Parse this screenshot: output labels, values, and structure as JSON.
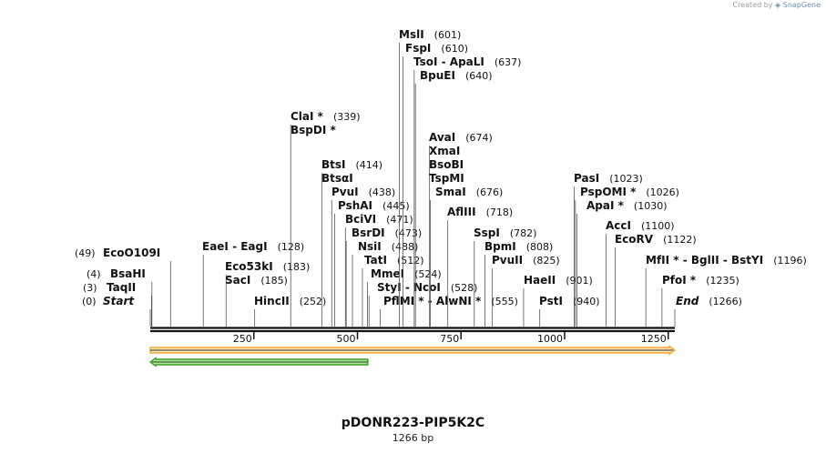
{
  "credit": {
    "prefix": "Created by",
    "brand": "SnapGene"
  },
  "plasmid": {
    "name": "pDONR223-PIP5K2C",
    "length_label": "1266 bp",
    "length": 1266
  },
  "axis": {
    "ticks": [
      250,
      500,
      750,
      1000,
      1250
    ]
  },
  "colors": {
    "feature_forward": "#f0a93a",
    "feature_forward_fill": "#ffe2b0",
    "feature_reverse": "#3aa12a",
    "feature_reverse_fill": "#a6ec8c",
    "backbone": "#111111",
    "line": "#555555"
  },
  "features": [
    {
      "direction": "forward",
      "start": 0,
      "end": 1266
    },
    {
      "direction": "reverse",
      "start": 0,
      "end": 525
    }
  ],
  "sites": [
    {
      "pos": 0,
      "lines": [
        {
          "name": "Start",
          "num": "(0)",
          "numLeft": true,
          "italic": true
        }
      ]
    },
    {
      "pos": 3,
      "lines": [
        {
          "name": "TaqII",
          "num": "(3)",
          "numLeft": true
        }
      ]
    },
    {
      "pos": 4,
      "lines": [
        {
          "name": "BsaHI",
          "num": "(4)",
          "numLeft": true
        }
      ]
    },
    {
      "pos": 49,
      "lines": [
        {
          "name": "EcoO109I",
          "num": "(49)",
          "numLeft": true
        }
      ]
    },
    {
      "pos": 128,
      "lines": [
        {
          "name": "EaeI  - EagI",
          "num": "(128)"
        }
      ]
    },
    {
      "pos": 183,
      "lines": [
        {
          "name": "Eco53kI",
          "num": "(183)"
        },
        {
          "name": "SacI",
          "num": "(185)"
        }
      ]
    },
    {
      "pos": 252,
      "lines": [
        {
          "name": "HincII",
          "num": "(252)"
        }
      ]
    },
    {
      "pos": 339,
      "lines": [
        {
          "name": "ClaI *",
          "num": "(339)"
        },
        {
          "name": "BspDI *",
          "num": ""
        }
      ]
    },
    {
      "pos": 414,
      "lines": [
        {
          "name": "BtsI",
          "num": "(414)"
        },
        {
          "name": "BtsαI",
          "num": ""
        }
      ]
    },
    {
      "pos": 438,
      "lines": [
        {
          "name": "PvuI",
          "num": "(438)"
        }
      ]
    },
    {
      "pos": 445,
      "lines": [
        {
          "name": "PshAI",
          "num": "(445)"
        }
      ]
    },
    {
      "pos": 471,
      "lines": [
        {
          "name": "BciVI",
          "num": "(471)"
        }
      ]
    },
    {
      "pos": 473,
      "lines": [
        {
          "name": "BsrDI",
          "num": "(473)"
        }
      ]
    },
    {
      "pos": 488,
      "lines": [
        {
          "name": "NsiI",
          "num": "(488)"
        }
      ]
    },
    {
      "pos": 512,
      "lines": [
        {
          "name": "TatI",
          "num": "(512)"
        }
      ]
    },
    {
      "pos": 524,
      "lines": [
        {
          "name": "MmeI",
          "num": "(524)"
        }
      ]
    },
    {
      "pos": 528,
      "lines": [
        {
          "name": "StyI  - NcoI",
          "num": "(528)"
        }
      ]
    },
    {
      "pos": 555,
      "lines": [
        {
          "name": "PflMI *  - AlwNI *",
          "num": "(555)"
        }
      ]
    },
    {
      "pos": 601,
      "lines": [
        {
          "name": "MslI",
          "num": "(601)"
        }
      ]
    },
    {
      "pos": 610,
      "lines": [
        {
          "name": "FspI",
          "num": "(610)"
        }
      ]
    },
    {
      "pos": 637,
      "lines": [
        {
          "name": "TsoI  - ApaLI",
          "num": "(637)"
        }
      ]
    },
    {
      "pos": 640,
      "lines": [
        {
          "name": "BpuEI",
          "num": "(640)"
        }
      ]
    },
    {
      "pos": 674,
      "lines": [
        {
          "name": "AvaI",
          "num": "(674)"
        },
        {
          "name": "XmaI",
          "num": ""
        },
        {
          "name": "BsoBI",
          "num": ""
        },
        {
          "name": "TspMI",
          "num": ""
        }
      ]
    },
    {
      "pos": 676,
      "lines": [
        {
          "name": "SmaI",
          "num": "(676)"
        }
      ]
    },
    {
      "pos": 718,
      "lines": [
        {
          "name": "AflIII",
          "num": "(718)"
        }
      ]
    },
    {
      "pos": 782,
      "lines": [
        {
          "name": "SspI",
          "num": "(782)"
        }
      ]
    },
    {
      "pos": 808,
      "lines": [
        {
          "name": "BpmI",
          "num": "(808)"
        }
      ]
    },
    {
      "pos": 825,
      "lines": [
        {
          "name": "PvuII",
          "num": "(825)"
        }
      ]
    },
    {
      "pos": 901,
      "lines": [
        {
          "name": "HaeII",
          "num": "(901)"
        }
      ]
    },
    {
      "pos": 940,
      "lines": [
        {
          "name": "PstI",
          "num": "(940)"
        }
      ]
    },
    {
      "pos": 1023,
      "lines": [
        {
          "name": "PasI",
          "num": "(1023)"
        }
      ]
    },
    {
      "pos": 1026,
      "lines": [
        {
          "name": "PspOMI *",
          "num": "(1026)"
        }
      ]
    },
    {
      "pos": 1030,
      "lines": [
        {
          "name": "ApaI *",
          "num": "(1030)"
        }
      ]
    },
    {
      "pos": 1100,
      "lines": [
        {
          "name": "AccI",
          "num": "(1100)"
        }
      ]
    },
    {
      "pos": 1122,
      "lines": [
        {
          "name": "EcoRV",
          "num": "(1122)"
        }
      ]
    },
    {
      "pos": 1196,
      "lines": [
        {
          "name": "MfII *  - BglII  - BstYI",
          "num": "(1196)"
        }
      ]
    },
    {
      "pos": 1235,
      "lines": [
        {
          "name": "PfoI *",
          "num": "(1235)"
        }
      ]
    },
    {
      "pos": 1266,
      "lines": [
        {
          "name": "End",
          "num": "(1266)",
          "italic": true
        }
      ]
    }
  ]
}
